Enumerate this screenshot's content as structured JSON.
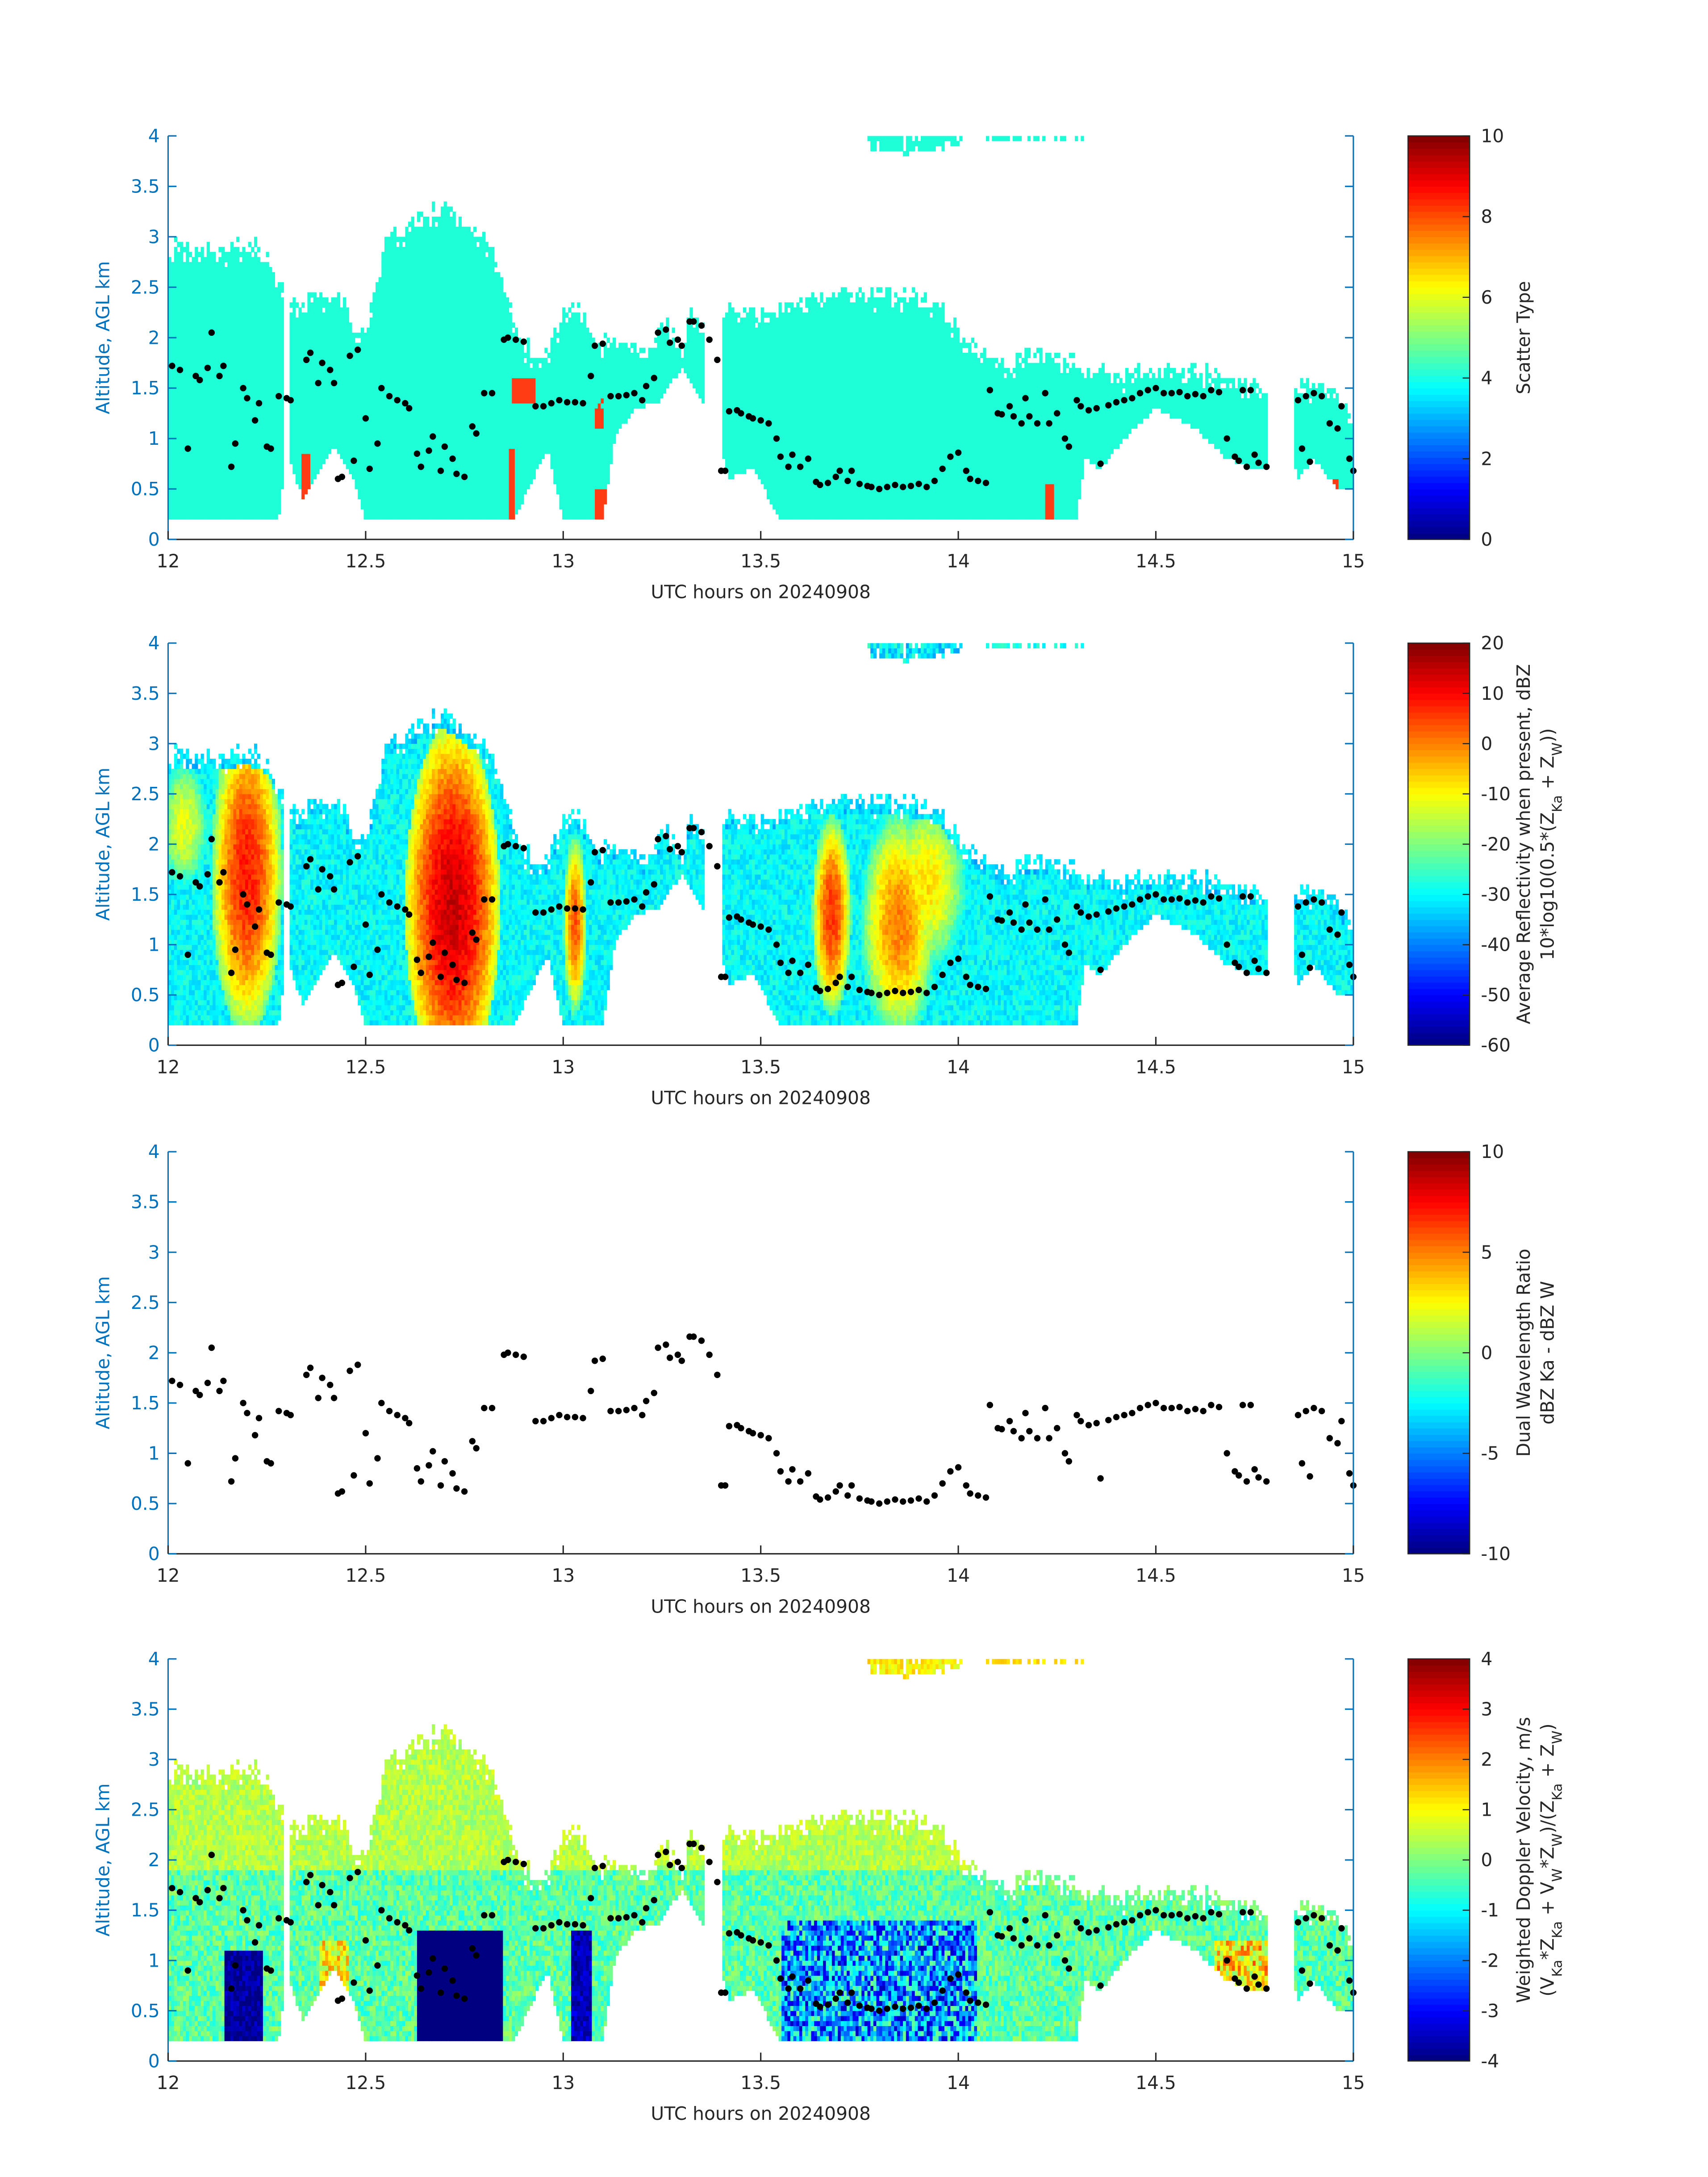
{
  "chart_data": [
    {
      "type": "heatmap",
      "xlabel": "UTC hours on 20240908",
      "ylabel": "Altitude, AGL km",
      "xlim": [
        12,
        15
      ],
      "ylim": [
        0,
        4
      ],
      "xticks": [
        "12",
        "12.5",
        "13",
        "13.5",
        "14",
        "14.5",
        "15"
      ],
      "yticks": [
        "0",
        "0.5",
        "1",
        "1.5",
        "2",
        "2.5",
        "3",
        "3.5",
        "4"
      ],
      "colorbar": {
        "label_lines": [
          "Scatter Type"
        ],
        "lim": [
          0,
          10
        ],
        "ticks": [
          "0",
          "2",
          "4",
          "6",
          "8",
          "10"
        ]
      },
      "field": "scatter_type",
      "colormap": "jet"
    },
    {
      "type": "heatmap",
      "xlabel": "UTC hours on 20240908",
      "ylabel": "Altitude, AGL km",
      "xlim": [
        12,
        15
      ],
      "ylim": [
        0,
        4
      ],
      "xticks": [
        "12",
        "12.5",
        "13",
        "13.5",
        "14",
        "14.5",
        "15"
      ],
      "yticks": [
        "0",
        "0.5",
        "1",
        "1.5",
        "2",
        "2.5",
        "3",
        "3.5",
        "4"
      ],
      "colorbar": {
        "label_lines": [
          "Average Reflectivity when present, dBZ",
          "10*log10(0.5*(Z_Ka + Z_W))"
        ],
        "lim": [
          -60,
          20
        ],
        "ticks": [
          "-60",
          "-50",
          "-40",
          "-30",
          "-20",
          "-10",
          "0",
          "10",
          "20"
        ]
      },
      "field": "reflectivity",
      "colormap": "jet"
    },
    {
      "type": "heatmap",
      "xlabel": "UTC hours on 20240908",
      "ylabel": "Altitude, AGL km",
      "xlim": [
        12,
        15
      ],
      "ylim": [
        0,
        4
      ],
      "xticks": [
        "12",
        "12.5",
        "13",
        "13.5",
        "14",
        "14.5",
        "15"
      ],
      "yticks": [
        "0",
        "0.5",
        "1",
        "1.5",
        "2",
        "2.5",
        "3",
        "3.5",
        "4"
      ],
      "colorbar": {
        "label_lines": [
          "Dual Wavelength Ratio",
          "dBZ Ka - dBZ W"
        ],
        "lim": [
          -10,
          10
        ],
        "ticks": [
          "-10",
          "-5",
          "0",
          "5",
          "10"
        ]
      },
      "field": "none",
      "colormap": "jet"
    },
    {
      "type": "heatmap",
      "xlabel": "UTC hours on 20240908",
      "ylabel": "Altitude, AGL km",
      "xlim": [
        12,
        15
      ],
      "ylim": [
        0,
        4
      ],
      "xticks": [
        "12",
        "12.5",
        "13",
        "13.5",
        "14",
        "14.5",
        "15"
      ],
      "yticks": [
        "0",
        "0.5",
        "1",
        "1.5",
        "2",
        "2.5",
        "3",
        "3.5",
        "4"
      ],
      "colorbar": {
        "label_lines": [
          "Weighted Doppler Velocity, m/s",
          "(V_Ka*Z_Ka + V_W*Z_W)/(Z_Ka + Z_W)"
        ],
        "lim": [
          -4,
          4
        ],
        "ticks": [
          "-4",
          "-3",
          "-2",
          "-1",
          "0",
          "1",
          "2",
          "3",
          "4"
        ]
      },
      "field": "velocity",
      "colormap": "jet"
    }
  ],
  "cloud_base_points": [
    [
      12.01,
      1.72
    ],
    [
      12.03,
      1.68
    ],
    [
      12.05,
      0.9
    ],
    [
      12.07,
      1.62
    ],
    [
      12.08,
      1.58
    ],
    [
      12.1,
      1.7
    ],
    [
      12.11,
      2.05
    ],
    [
      12.13,
      1.62
    ],
    [
      12.14,
      1.72
    ],
    [
      12.16,
      0.72
    ],
    [
      12.17,
      0.95
    ],
    [
      12.19,
      1.5
    ],
    [
      12.2,
      1.4
    ],
    [
      12.22,
      1.18
    ],
    [
      12.23,
      1.35
    ],
    [
      12.25,
      0.92
    ],
    [
      12.26,
      0.9
    ],
    [
      12.28,
      1.42
    ],
    [
      12.3,
      1.4
    ],
    [
      12.31,
      1.38
    ],
    [
      12.35,
      1.78
    ],
    [
      12.36,
      1.85
    ],
    [
      12.38,
      1.55
    ],
    [
      12.39,
      1.75
    ],
    [
      12.41,
      1.68
    ],
    [
      12.42,
      1.55
    ],
    [
      12.43,
      0.6
    ],
    [
      12.44,
      0.62
    ],
    [
      12.46,
      1.82
    ],
    [
      12.47,
      0.78
    ],
    [
      12.48,
      1.88
    ],
    [
      12.5,
      1.2
    ],
    [
      12.51,
      0.7
    ],
    [
      12.53,
      0.95
    ],
    [
      12.54,
      1.5
    ],
    [
      12.56,
      1.42
    ],
    [
      12.58,
      1.38
    ],
    [
      12.6,
      1.35
    ],
    [
      12.61,
      1.3
    ],
    [
      12.63,
      0.85
    ],
    [
      12.64,
      0.72
    ],
    [
      12.66,
      0.88
    ],
    [
      12.67,
      1.02
    ],
    [
      12.69,
      0.68
    ],
    [
      12.7,
      0.92
    ],
    [
      12.72,
      0.8
    ],
    [
      12.73,
      0.65
    ],
    [
      12.75,
      0.62
    ],
    [
      12.77,
      1.12
    ],
    [
      12.78,
      1.05
    ],
    [
      12.8,
      1.45
    ],
    [
      12.82,
      1.45
    ],
    [
      12.85,
      1.98
    ],
    [
      12.86,
      2.0
    ],
    [
      12.88,
      1.98
    ],
    [
      12.9,
      1.96
    ],
    [
      12.93,
      1.32
    ],
    [
      12.95,
      1.32
    ],
    [
      12.97,
      1.35
    ],
    [
      12.99,
      1.38
    ],
    [
      13.01,
      1.36
    ],
    [
      13.03,
      1.36
    ],
    [
      13.05,
      1.35
    ],
    [
      13.07,
      1.62
    ],
    [
      13.08,
      1.92
    ],
    [
      13.1,
      1.94
    ],
    [
      13.12,
      1.42
    ],
    [
      13.14,
      1.42
    ],
    [
      13.16,
      1.43
    ],
    [
      13.18,
      1.45
    ],
    [
      13.2,
      1.38
    ],
    [
      13.21,
      1.52
    ],
    [
      13.23,
      1.6
    ],
    [
      13.24,
      2.05
    ],
    [
      13.26,
      2.08
    ],
    [
      13.27,
      1.95
    ],
    [
      13.29,
      1.98
    ],
    [
      13.3,
      1.92
    ],
    [
      13.32,
      2.16
    ],
    [
      13.33,
      2.16
    ],
    [
      13.35,
      2.12
    ],
    [
      13.37,
      1.98
    ],
    [
      13.39,
      1.78
    ],
    [
      13.4,
      0.68
    ],
    [
      13.41,
      0.68
    ],
    [
      13.42,
      1.27
    ],
    [
      13.44,
      1.28
    ],
    [
      13.45,
      1.25
    ],
    [
      13.47,
      1.22
    ],
    [
      13.48,
      1.2
    ],
    [
      13.5,
      1.18
    ],
    [
      13.52,
      1.15
    ],
    [
      13.54,
      1.0
    ],
    [
      13.55,
      0.82
    ],
    [
      13.57,
      0.72
    ],
    [
      13.58,
      0.84
    ],
    [
      13.6,
      0.72
    ],
    [
      13.62,
      0.8
    ],
    [
      13.64,
      0.57
    ],
    [
      13.65,
      0.54
    ],
    [
      13.67,
      0.56
    ],
    [
      13.69,
      0.62
    ],
    [
      13.7,
      0.68
    ],
    [
      13.72,
      0.58
    ],
    [
      13.73,
      0.68
    ],
    [
      13.75,
      0.55
    ],
    [
      13.77,
      0.53
    ],
    [
      13.78,
      0.52
    ],
    [
      13.8,
      0.5
    ],
    [
      13.82,
      0.52
    ],
    [
      13.84,
      0.54
    ],
    [
      13.86,
      0.52
    ],
    [
      13.88,
      0.53
    ],
    [
      13.9,
      0.55
    ],
    [
      13.92,
      0.52
    ],
    [
      13.94,
      0.58
    ],
    [
      13.96,
      0.7
    ],
    [
      13.98,
      0.82
    ],
    [
      14.0,
      0.86
    ],
    [
      14.02,
      0.68
    ],
    [
      14.03,
      0.6
    ],
    [
      14.05,
      0.58
    ],
    [
      14.07,
      0.56
    ],
    [
      14.08,
      1.48
    ],
    [
      14.1,
      1.25
    ],
    [
      14.11,
      1.24
    ],
    [
      14.13,
      1.32
    ],
    [
      14.14,
      1.22
    ],
    [
      14.16,
      1.15
    ],
    [
      14.17,
      1.4
    ],
    [
      14.18,
      1.22
    ],
    [
      14.2,
      1.15
    ],
    [
      14.22,
      1.45
    ],
    [
      14.23,
      1.15
    ],
    [
      14.25,
      1.25
    ],
    [
      14.27,
      1.0
    ],
    [
      14.28,
      0.92
    ],
    [
      14.3,
      1.38
    ],
    [
      14.31,
      1.32
    ],
    [
      14.33,
      1.28
    ],
    [
      14.35,
      1.3
    ],
    [
      14.36,
      0.75
    ],
    [
      14.38,
      1.33
    ],
    [
      14.4,
      1.36
    ],
    [
      14.42,
      1.38
    ],
    [
      14.44,
      1.4
    ],
    [
      14.46,
      1.45
    ],
    [
      14.48,
      1.48
    ],
    [
      14.5,
      1.5
    ],
    [
      14.52,
      1.45
    ],
    [
      14.54,
      1.45
    ],
    [
      14.56,
      1.46
    ],
    [
      14.58,
      1.42
    ],
    [
      14.6,
      1.44
    ],
    [
      14.62,
      1.42
    ],
    [
      14.64,
      1.48
    ],
    [
      14.66,
      1.46
    ],
    [
      14.68,
      1.0
    ],
    [
      14.7,
      0.82
    ],
    [
      14.71,
      0.78
    ],
    [
      14.73,
      0.72
    ],
    [
      14.75,
      0.84
    ],
    [
      14.76,
      0.76
    ],
    [
      14.78,
      0.72
    ],
    [
      14.72,
      1.48
    ],
    [
      14.74,
      1.48
    ],
    [
      14.86,
      1.38
    ],
    [
      14.87,
      0.9
    ],
    [
      14.88,
      1.42
    ],
    [
      14.89,
      0.77
    ],
    [
      14.9,
      1.45
    ],
    [
      14.92,
      1.42
    ],
    [
      14.94,
      1.15
    ],
    [
      14.96,
      1.1
    ],
    [
      14.97,
      1.32
    ],
    [
      14.99,
      0.8
    ],
    [
      15.0,
      0.68
    ]
  ]
}
